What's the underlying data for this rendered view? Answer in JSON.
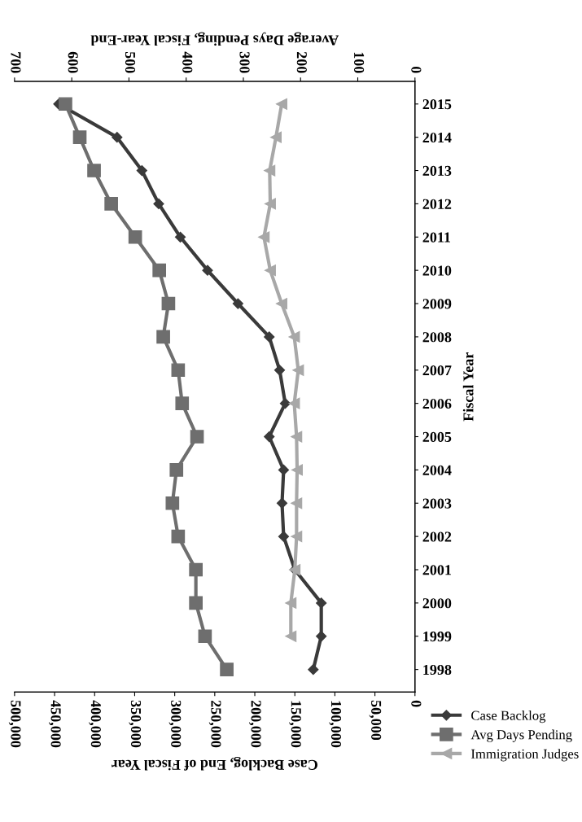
{
  "chart_data": {
    "type": "line",
    "orientation": "horizontal",
    "xlabel": "Case Backlog, End of Fiscal Year",
    "x2label": "Average Days Pending, Fiscal Year-End",
    "ylabel": "Fiscal Year",
    "categories": [
      "2015",
      "2014",
      "2013",
      "2012",
      "2011",
      "2010",
      "2009",
      "2008",
      "2007",
      "2006",
      "2005",
      "2004",
      "2003",
      "2002",
      "2001",
      "2000",
      "1999",
      "1998"
    ],
    "series": [
      {
        "name": "Case Backlog",
        "color": "#3a3a3a",
        "marker": "diamond",
        "values": [
          445000,
          372000,
          341000,
          320000,
          293000,
          259000,
          221000,
          182000,
          169000,
          162000,
          182000,
          164000,
          166000,
          164000,
          150000,
          117000,
          117000,
          127000
        ]
      },
      {
        "name": "Avg Days Pending",
        "color": "#6e6e6e",
        "marker": "square",
        "axis": "x2",
        "values": [
          611,
          586,
          561,
          531,
          489,
          447,
          431,
          440,
          414,
          407,
          381,
          417,
          424,
          414,
          383,
          383,
          367,
          329
        ]
      },
      {
        "name": "Immigration Judges",
        "color": "#a8a8a8",
        "marker": "triangle",
        "axis": "x2",
        "values": [
          233,
          243,
          254,
          253,
          264,
          253,
          233,
          211,
          204,
          211,
          207,
          206,
          207,
          207,
          210,
          217,
          217,
          null
        ]
      }
    ],
    "xlim": [
      500000,
      0
    ],
    "xticks": [
      0,
      {
        "value": 50000,
        "label": "50,000"
      },
      {
        "value": 100000,
        "label": "100,000"
      },
      {
        "value": 150000,
        "label": "150,000"
      },
      {
        "value": 200000,
        "label": "200,000"
      },
      {
        "value": 250000,
        "label": "250,000"
      },
      {
        "value": 300000,
        "label": "300,000"
      },
      {
        "value": 350000,
        "label": "350,000"
      },
      {
        "value": 400000,
        "label": "400,000"
      },
      {
        "value": 450000,
        "label": "450,000"
      },
      {
        "value": 500000,
        "label": "500,000"
      }
    ],
    "x2lim": [
      700,
      0
    ],
    "x2ticks": [
      0,
      100,
      200,
      300,
      400,
      500,
      600,
      700
    ],
    "grid": false,
    "legend": "bottom right",
    "line_style": "solid"
  }
}
